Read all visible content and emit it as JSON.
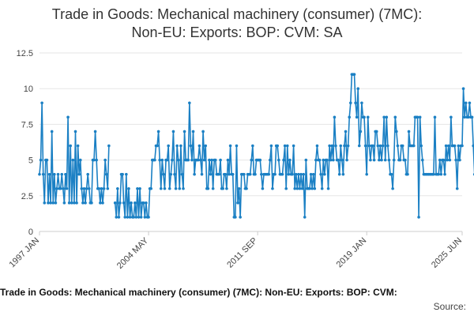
{
  "chart_data": {
    "type": "line",
    "title_lines": [
      "Trade in Goods: Mechanical machinery (consumer) (7MC):",
      "Non-EU: Exports: BOP: CVM: SA"
    ],
    "footer": "Trade in Goods: Mechanical machinery (consumer) (7MC): Non-EU: Exports: BOP: CVM:",
    "source_label": "Source:",
    "xlabel": "",
    "ylabel": "",
    "ylim": [
      0,
      12.5
    ],
    "y_ticks": [
      "0",
      "2.5",
      "5",
      "7.5",
      "10",
      "12.5"
    ],
    "x_range": [
      "1997-01",
      "2025-06"
    ],
    "x_ticks": [
      {
        "label": "1997 JAN",
        "date": "1997-01"
      },
      {
        "label": "2004 MAY",
        "date": "2004-05"
      },
      {
        "label": "2011 SEP",
        "date": "2011-09"
      },
      {
        "label": "2019 JAN",
        "date": "2019-01"
      },
      {
        "label": "2025 JUN",
        "date": "2025-06"
      }
    ],
    "grid": true,
    "legend": "none",
    "colors": {
      "line": "#1b80c4",
      "grid": "#e6e6e6",
      "axis": "#cccccc"
    },
    "series": [
      {
        "start": "1997-01",
        "frequency": "monthly",
        "values": [
          4,
          5,
          9,
          4,
          2,
          5,
          5,
          2,
          4,
          2,
          7,
          2,
          4,
          2,
          3,
          4,
          3,
          3,
          4,
          3,
          2,
          4,
          3,
          8,
          2,
          6,
          2,
          5,
          2,
          7,
          2,
          6,
          4,
          5,
          3,
          2,
          3,
          2,
          3,
          4,
          3,
          2,
          2,
          5,
          5,
          7,
          5,
          3,
          3,
          2,
          3,
          2,
          3,
          5,
          4,
          3,
          6,
          null,
          null,
          null,
          null,
          2,
          1,
          3,
          1,
          2,
          4,
          4,
          2,
          1,
          4,
          1,
          3,
          1,
          2,
          1,
          1,
          2,
          1,
          3,
          1,
          3,
          1,
          2,
          2,
          1,
          2,
          1,
          1,
          3,
          3,
          5,
          5,
          5,
          6,
          6,
          7,
          5,
          3,
          5,
          4,
          3,
          5,
          5,
          6,
          3,
          4,
          5,
          7,
          4,
          3,
          6,
          5,
          3,
          6,
          4,
          3,
          7,
          5,
          5,
          5,
          9,
          6,
          5,
          7,
          4,
          5,
          5,
          5,
          6,
          5,
          4,
          7,
          5,
          6,
          3,
          3,
          5,
          4,
          5,
          3,
          5,
          5,
          4,
          4,
          4,
          5,
          3,
          3,
          4,
          4,
          3,
          5,
          4,
          6,
          4,
          4,
          1,
          1,
          6,
          2,
          3,
          1,
          4,
          4,
          4,
          3,
          3,
          4,
          4,
          4,
          5,
          6,
          4,
          4,
          5,
          5,
          5,
          5,
          4,
          3,
          4,
          4,
          4,
          4,
          4,
          5,
          6,
          3,
          4,
          4,
          6,
          6,
          5,
          4,
          4,
          4,
          5,
          6,
          3,
          6,
          4,
          5,
          4,
          4,
          6,
          3,
          4,
          3,
          4,
          3,
          4,
          3,
          4,
          1,
          5,
          3,
          3,
          3,
          4,
          3,
          4,
          3,
          5,
          6,
          5,
          5,
          4,
          3,
          5,
          4,
          5,
          5,
          3,
          6,
          5,
          6,
          5,
          8,
          6,
          5,
          5,
          4,
          6,
          5,
          4,
          6,
          7,
          5,
          6,
          8,
          9,
          11,
          11,
          11,
          9,
          8,
          10,
          6,
          7,
          9,
          8,
          8,
          6,
          4,
          8,
          6,
          5,
          6,
          6,
          5,
          7,
          7,
          6,
          5,
          6,
          5,
          6,
          8,
          5,
          8,
          6,
          5,
          4,
          4,
          3,
          5,
          8,
          7,
          6,
          5,
          5,
          6,
          6,
          5,
          5,
          4,
          4,
          7,
          6,
          6,
          6,
          6,
          8,
          8,
          8,
          1,
          8,
          6,
          5,
          4,
          4,
          4,
          4,
          4,
          4,
          4,
          4,
          4,
          8,
          4,
          4,
          4,
          5,
          4,
          5,
          5,
          4,
          6,
          5,
          6,
          5,
          8,
          6,
          6,
          6,
          5,
          3,
          6,
          5,
          6,
          6,
          10,
          8,
          9,
          8,
          8,
          9,
          8,
          8,
          6,
          4,
          8,
          6,
          6,
          6,
          11,
          6,
          6,
          6,
          4,
          6,
          6,
          6,
          6,
          7,
          6,
          6,
          6,
          8
        ]
      }
    ]
  }
}
